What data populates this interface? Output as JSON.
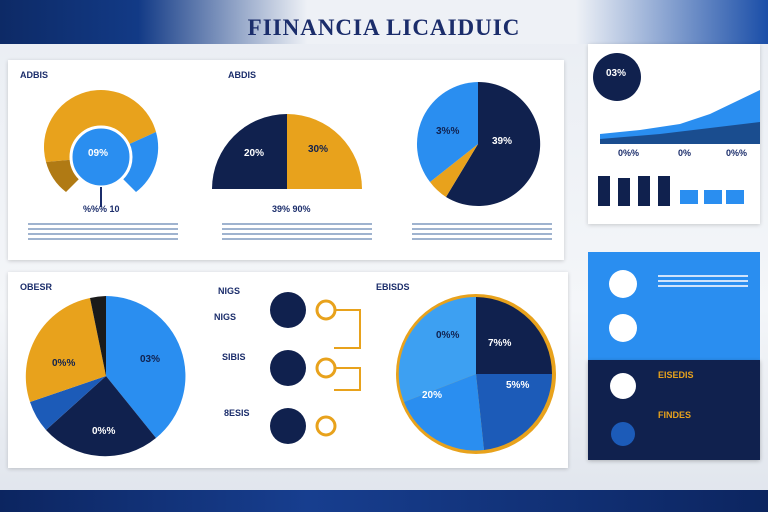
{
  "header": {
    "title": "FIINANCIA LICAIDUIC"
  },
  "top_panel": {
    "label_left": "ADBIS",
    "label_mid": "ABDIS",
    "donut_center": "09%",
    "donut_caption": "%%% 10",
    "half_left": "20%",
    "half_right": "30%",
    "half_caption": "39% 90%",
    "pie_left": "3%%",
    "pie_right": "39%"
  },
  "right_card": {
    "badge": "03%",
    "ticks": [
      "0%%",
      "0%",
      "0%%"
    ]
  },
  "bottom_panel": {
    "label": "OBESR",
    "label_mid": "NIGS",
    "label_right": "EBISDS",
    "pie_right_label": "03%",
    "pie_bottom_label": "0%%",
    "pie_left_label": "0%%",
    "list_labels": [
      "NIGS",
      "SIBIS",
      "8ESIS"
    ],
    "ring_labels": [
      "0%%",
      "7%%",
      "5%%",
      "20%"
    ]
  },
  "side_panel": {
    "titles": [
      "EISEDIS",
      "FINDES"
    ]
  },
  "colors": {
    "navy": "#10214e",
    "blue": "#2a8ef0",
    "gold": "#e8a21c"
  }
}
